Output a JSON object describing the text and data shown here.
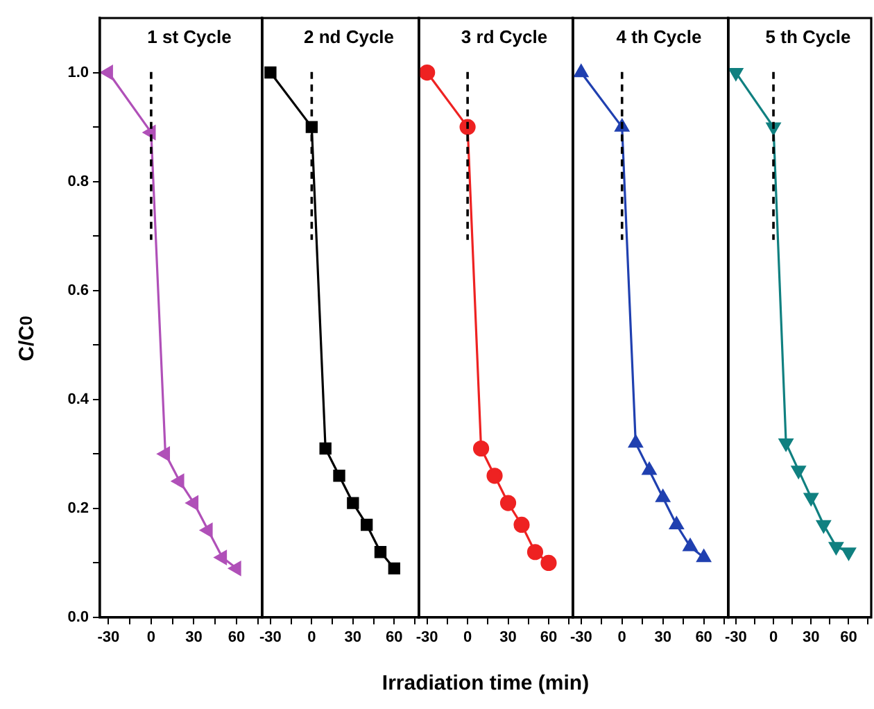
{
  "chart_data": [
    {
      "type": "line",
      "title": "1 st Cycle",
      "ylabel": "C/C$_{0}$",
      "x": [
        -30,
        0,
        10,
        20,
        30,
        40,
        50,
        60
      ],
      "series": [
        {
          "color": "#b050b8",
          "values": [
            1.0,
            0.89,
            0.3,
            0.25,
            0.21,
            0.16,
            0.11,
            0.09
          ]
        }
      ],
      "marker": "triangle",
      "xlim": [
        -36,
        78
      ],
      "xticks": [
        -30,
        {
          "value": -15,
          "label": null
        },
        0,
        {
          "value": 15,
          "label": null
        },
        30,
        {
          "value": 45,
          "label": null
        },
        60,
        {
          "value": 75,
          "label": null
        }
      ],
      "ylim": [
        0,
        1.1
      ],
      "yticks": [
        {
          "value": 0,
          "label": "0.0"
        },
        {
          "value": 0.1,
          "label": null
        },
        0.2,
        {
          "value": 0.3,
          "label": null
        },
        0.4,
        {
          "value": 0.5,
          "label": null
        },
        0.6,
        {
          "value": 0.7,
          "label": null
        },
        0.8,
        {
          "value": 0.9,
          "label": null
        },
        {
          "value": 1,
          "label": "1.0"
        }
      ],
      "ref_lines": [
        {
          "axis": "x",
          "value": 0,
          "line_style": "dashed",
          "color": "#000000"
        }
      ],
      "grid": false,
      "legend": false
    },
    {
      "type": "line",
      "title": "2 nd Cycle",
      "yticks": [
        0,
        0.2,
        0.4,
        0.6,
        0.8,
        1
      ],
      "x": [
        -30,
        0,
        10,
        20,
        30,
        40,
        50,
        60
      ],
      "series": [
        {
          "color": "#000000",
          "values": [
            1.0,
            0.9,
            0.31,
            0.26,
            0.21,
            0.17,
            0.12,
            0.09
          ]
        }
      ],
      "marker": "square",
      "xlim": [
        -36,
        78
      ],
      "xticks": [
        -30,
        {
          "value": -15,
          "label": null
        },
        0,
        {
          "value": 15,
          "label": null
        },
        30,
        {
          "value": 45,
          "label": null
        },
        60,
        {
          "value": 75,
          "label": null
        }
      ],
      "ylim": [
        0,
        1.1
      ],
      "tick_labels": "x",
      "ref_lines": [
        {
          "axis": "x",
          "value": 0,
          "line_style": "dashed",
          "color": "#000000"
        }
      ],
      "grid": false,
      "legend": false
    },
    {
      "type": "line",
      "title": "3 rd Cycle",
      "yticks": [
        0,
        0.2,
        0.4,
        0.6,
        0.8,
        1
      ],
      "xlabel": "Irradiation time (min)",
      "x": [
        -30,
        0,
        10,
        20,
        30,
        40,
        50,
        60
      ],
      "series": [
        {
          "color": "#ee2222",
          "values": [
            1.0,
            0.9,
            0.31,
            0.26,
            0.21,
            0.17,
            0.12,
            0.1
          ]
        }
      ],
      "marker": "circle",
      "xlim": [
        -36,
        78
      ],
      "xticks": [
        -30,
        {
          "value": -15,
          "label": null
        },
        0,
        {
          "value": 15,
          "label": null
        },
        30,
        {
          "value": 45,
          "label": null
        },
        60,
        {
          "value": 75,
          "label": null
        }
      ],
      "ylim": [
        0,
        1.1
      ],
      "tick_labels": "x",
      "ref_lines": [
        {
          "axis": "x",
          "value": 0,
          "line_style": "dashed",
          "color": "#000000"
        }
      ],
      "grid": false,
      "legend": false
    },
    {
      "type": "line",
      "title": "4 th Cycle",
      "yticks": [
        0,
        0.2,
        0.4,
        0.6,
        0.8,
        1
      ],
      "x": [
        -30,
        0,
        10,
        20,
        30,
        40,
        50,
        60
      ],
      "series": [
        {
          "color": "#2040b0",
          "values": [
            1.0,
            0.9,
            0.32,
            0.27,
            0.22,
            0.17,
            0.13,
            0.11
          ]
        }
      ],
      "marker": "triangle",
      "xlim": [
        -36,
        78
      ],
      "xticks": [
        -30,
        {
          "value": -15,
          "label": null
        },
        0,
        {
          "value": 15,
          "label": null
        },
        30,
        {
          "value": 45,
          "label": null
        },
        60,
        {
          "value": 75,
          "label": null
        }
      ],
      "ylim": [
        0,
        1.1
      ],
      "tick_labels": "x",
      "ref_lines": [
        {
          "axis": "x",
          "value": 0,
          "line_style": "dashed",
          "color": "#000000"
        }
      ],
      "grid": false,
      "legend": false
    },
    {
      "type": "line",
      "title": "5 th Cycle",
      "yticks": [
        0,
        0.2,
        0.4,
        0.6,
        0.8,
        1
      ],
      "x": [
        -30,
        0,
        10,
        20,
        30,
        40,
        50,
        60
      ],
      "series": [
        {
          "color": "#108080",
          "values": [
            1.0,
            0.9,
            0.32,
            0.27,
            0.22,
            0.17,
            0.13,
            0.12
          ]
        }
      ],
      "marker": "triangle",
      "xlim": [
        -36,
        78
      ],
      "xticks": [
        -30,
        {
          "value": -15,
          "label": null
        },
        0,
        {
          "value": 15,
          "label": null
        },
        30,
        {
          "value": 45,
          "label": null
        },
        60,
        {
          "value": 75,
          "label": null
        }
      ],
      "ylim": [
        0,
        1.1
      ],
      "tick_labels": "x",
      "ref_lines": [
        {
          "axis": "x",
          "value": 0,
          "line_style": "dashed",
          "color": "#000000"
        }
      ],
      "grid": false,
      "legend": false
    }
  ]
}
